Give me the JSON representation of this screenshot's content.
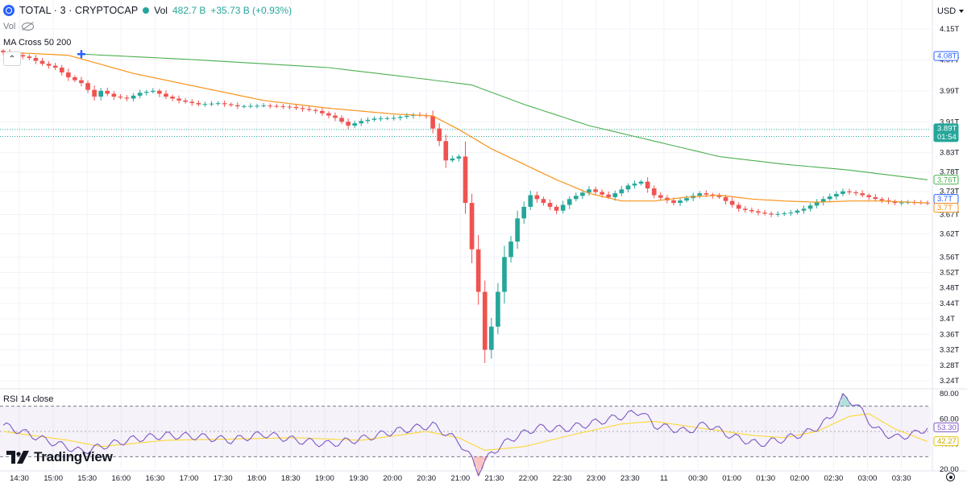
{
  "header": {
    "symbol": "TOTAL · 3 · CRYPTOCAP",
    "vol_label": "Vol",
    "vol_value": "482.7 B",
    "vol_change": "+35.73 B (+0.93%)",
    "vol_indicator": "Vol",
    "ma_indicator": "MA Cross 50 200",
    "currency": "USD",
    "collapse_icon": "chevron-up-icon"
  },
  "rsi_label": "RSI 14 close",
  "brand": "TradingView",
  "colors": {
    "up": "#26a69a",
    "down": "#ef5350",
    "ma50": "#f7931a",
    "ma200": "#4caf50",
    "rsi": "#7e57c2",
    "rsi_ma": "#fdd835",
    "accent": "#2962ff"
  },
  "chart_data": [
    {
      "type": "candlestick",
      "yunit": "T USD",
      "ylim": [
        3.22,
        4.17
      ],
      "yticks": [
        "4.15T",
        "4.07T",
        "3.99T",
        "3.91T",
        "3.83T",
        "3.78T",
        "3.73T",
        "3.67T",
        "3.62T",
        "3.56T",
        "3.52T",
        "3.48T",
        "3.44T",
        "3.4T",
        "3.36T",
        "3.32T",
        "3.28T",
        "3.24T"
      ],
      "xticks": [
        "14:30",
        "15:00",
        "15:30",
        "16:00",
        "16:30",
        "17:00",
        "17:30",
        "18:00",
        "18:30",
        "19:00",
        "19:30",
        "20:00",
        "20:30",
        "21:00",
        "21:30",
        "22:00",
        "22:30",
        "23:00",
        "23:30",
        "11",
        "00:30",
        "01:00",
        "01:30",
        "02:00",
        "02:30",
        "03:00",
        "03:30"
      ],
      "anchors": [
        [
          0,
          4.09
        ],
        [
          4,
          4.075
        ],
        [
          6,
          4.06
        ],
        [
          8,
          4.05
        ],
        [
          10,
          4.025
        ],
        [
          12,
          4.01
        ],
        [
          14,
          3.975
        ],
        [
          15,
          3.99
        ],
        [
          17,
          3.975
        ],
        [
          19,
          3.97
        ],
        [
          21,
          3.985
        ],
        [
          23,
          3.99
        ],
        [
          25,
          3.975
        ],
        [
          27,
          3.965
        ],
        [
          30,
          3.955
        ],
        [
          33,
          3.958
        ],
        [
          36,
          3.95
        ],
        [
          40,
          3.952
        ],
        [
          44,
          3.948
        ],
        [
          48,
          3.938
        ],
        [
          51,
          3.92
        ],
        [
          53,
          3.9
        ],
        [
          55,
          3.912
        ],
        [
          57,
          3.918
        ],
        [
          60,
          3.92
        ],
        [
          63,
          3.928
        ],
        [
          65,
          3.925
        ],
        [
          67,
          3.86
        ],
        [
          68,
          3.81
        ],
        [
          70,
          3.82
        ],
        [
          71,
          3.7
        ],
        [
          72,
          3.58
        ],
        [
          73,
          3.47
        ],
        [
          74,
          3.32
        ],
        [
          75,
          3.38
        ],
        [
          76,
          3.47
        ],
        [
          77,
          3.56
        ],
        [
          78,
          3.6
        ],
        [
          79,
          3.66
        ],
        [
          81,
          3.72
        ],
        [
          83,
          3.7
        ],
        [
          85,
          3.68
        ],
        [
          87,
          3.71
        ],
        [
          90,
          3.735
        ],
        [
          93,
          3.715
        ],
        [
          96,
          3.745
        ],
        [
          98,
          3.755
        ],
        [
          100,
          3.72
        ],
        [
          103,
          3.7
        ],
        [
          107,
          3.725
        ],
        [
          110,
          3.715
        ],
        [
          113,
          3.685
        ],
        [
          116,
          3.675
        ],
        [
          118,
          3.67
        ],
        [
          121,
          3.675
        ],
        [
          123,
          3.685
        ],
        [
          126,
          3.71
        ],
        [
          129,
          3.73
        ],
        [
          131,
          3.725
        ],
        [
          134,
          3.71
        ],
        [
          137,
          3.7
        ],
        [
          139,
          3.702
        ],
        [
          142,
          3.7
        ]
      ],
      "ma50": [
        [
          0,
          4.09
        ],
        [
          10,
          4.082
        ],
        [
          20,
          4.035
        ],
        [
          30,
          4.0
        ],
        [
          40,
          3.965
        ],
        [
          50,
          3.945
        ],
        [
          60,
          3.93
        ],
        [
          66,
          3.925
        ],
        [
          70,
          3.89
        ],
        [
          75,
          3.84
        ],
        [
          80,
          3.8
        ],
        [
          85,
          3.76
        ],
        [
          90,
          3.725
        ],
        [
          95,
          3.705
        ],
        [
          100,
          3.705
        ],
        [
          105,
          3.715
        ],
        [
          110,
          3.72
        ],
        [
          115,
          3.71
        ],
        [
          120,
          3.705
        ],
        [
          125,
          3.702
        ],
        [
          130,
          3.705
        ],
        [
          135,
          3.705
        ],
        [
          142,
          3.7
        ]
      ],
      "ma200": [
        [
          12,
          4.085
        ],
        [
          30,
          4.07
        ],
        [
          50,
          4.05
        ],
        [
          65,
          4.02
        ],
        [
          72,
          4.005
        ],
        [
          80,
          3.955
        ],
        [
          90,
          3.9
        ],
        [
          100,
          3.86
        ],
        [
          110,
          3.82
        ],
        [
          120,
          3.8
        ],
        [
          130,
          3.785
        ],
        [
          142,
          3.76
        ]
      ],
      "labels": [
        {
          "text": "4.08T",
          "value": 4.08,
          "style": "blue"
        },
        {
          "text": "3.89T",
          "sub": "01:54",
          "value": 3.89,
          "style": "green"
        },
        {
          "text": "3.76T",
          "value": 3.76,
          "style": "green-outline"
        },
        {
          "text": "3.7T",
          "value": 3.7,
          "style": "blue-outline"
        },
        {
          "text": "3.7T",
          "value": 3.7,
          "style": "orange-outline"
        }
      ]
    },
    {
      "type": "line",
      "name": "RSI 14 close",
      "ylim": [
        10,
        85
      ],
      "yticks": [
        "80.00",
        "60.00",
        "40.00",
        "20.00"
      ],
      "bands": {
        "upper": 70,
        "lower": 30
      },
      "rsi": [
        [
          0,
          55
        ],
        [
          6,
          44
        ],
        [
          12,
          34
        ],
        [
          15,
          38
        ],
        [
          20,
          44
        ],
        [
          25,
          47
        ],
        [
          30,
          46
        ],
        [
          35,
          43
        ],
        [
          40,
          48
        ],
        [
          45,
          43
        ],
        [
          50,
          40
        ],
        [
          55,
          44
        ],
        [
          60,
          50
        ],
        [
          66,
          55
        ],
        [
          70,
          42
        ],
        [
          72,
          28
        ],
        [
          73,
          18
        ],
        [
          75,
          33
        ],
        [
          78,
          44
        ],
        [
          82,
          53
        ],
        [
          86,
          52
        ],
        [
          90,
          56
        ],
        [
          95,
          62
        ],
        [
          98,
          66
        ],
        [
          100,
          55
        ],
        [
          105,
          50
        ],
        [
          108,
          56
        ],
        [
          112,
          46
        ],
        [
          116,
          40
        ],
        [
          120,
          44
        ],
        [
          124,
          50
        ],
        [
          127,
          60
        ],
        [
          129,
          77
        ],
        [
          131,
          72
        ],
        [
          134,
          52
        ],
        [
          137,
          45
        ],
        [
          140,
          48
        ],
        [
          142,
          53
        ]
      ],
      "rsi_ma": [
        [
          0,
          50
        ],
        [
          10,
          43
        ],
        [
          15,
          38
        ],
        [
          25,
          43
        ],
        [
          35,
          44
        ],
        [
          45,
          45
        ],
        [
          55,
          43
        ],
        [
          65,
          50
        ],
        [
          70,
          45
        ],
        [
          74,
          35
        ],
        [
          80,
          38
        ],
        [
          88,
          48
        ],
        [
          95,
          56
        ],
        [
          100,
          58
        ],
        [
          108,
          52
        ],
        [
          115,
          47
        ],
        [
          120,
          45
        ],
        [
          125,
          50
        ],
        [
          130,
          62
        ],
        [
          133,
          64
        ],
        [
          137,
          52
        ],
        [
          142,
          42
        ]
      ],
      "labels": [
        {
          "text": "53.30",
          "value": 53.3,
          "style": "purple"
        },
        {
          "text": "42.27",
          "value": 42.27,
          "style": "yellow"
        }
      ]
    }
  ]
}
